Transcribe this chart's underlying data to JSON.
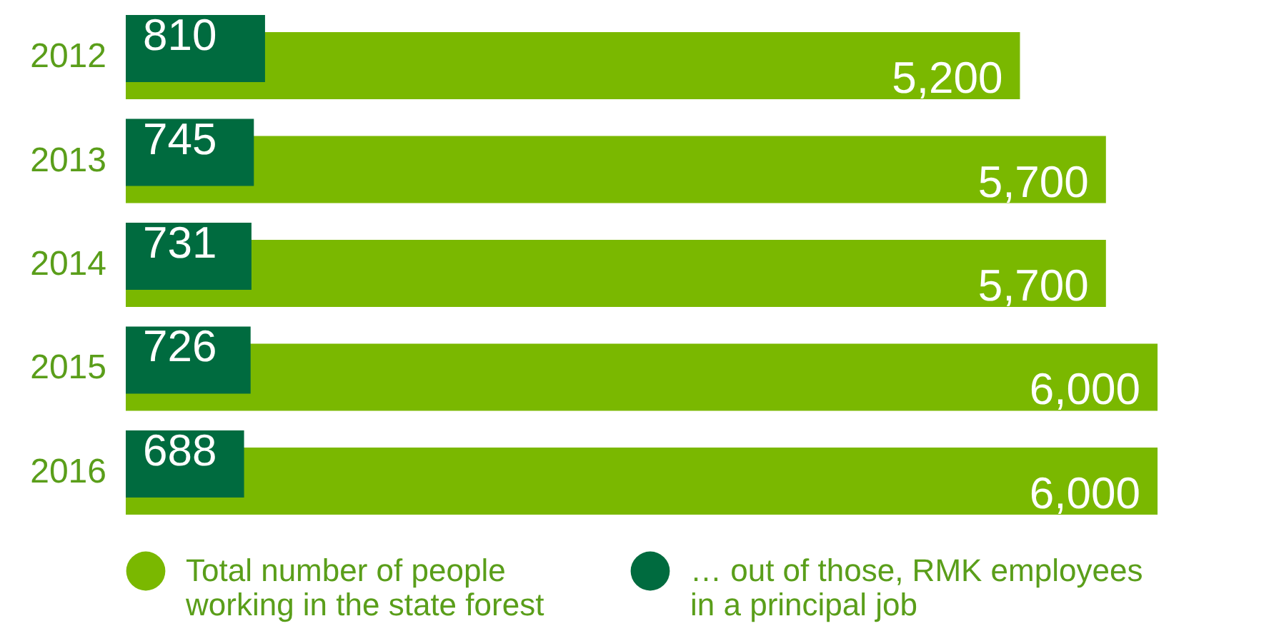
{
  "chart_data": {
    "type": "bar",
    "orientation": "horizontal",
    "categories": [
      "2012",
      "2013",
      "2014",
      "2015",
      "2016"
    ],
    "series": [
      {
        "name": "Total number of people working in the state forest",
        "color": "#7ab800",
        "values": [
          5200,
          5700,
          5700,
          6000,
          6000
        ],
        "value_labels": [
          "5,200",
          "5,700",
          "5,700",
          "6,000",
          "6,000"
        ]
      },
      {
        "name": "… out of those, RMK employees in a principal job",
        "color": "#006b3f",
        "values": [
          810,
          745,
          731,
          726,
          688
        ],
        "value_labels": [
          "810",
          "745",
          "731",
          "726",
          "688"
        ]
      }
    ],
    "legend": "bottom"
  }
}
